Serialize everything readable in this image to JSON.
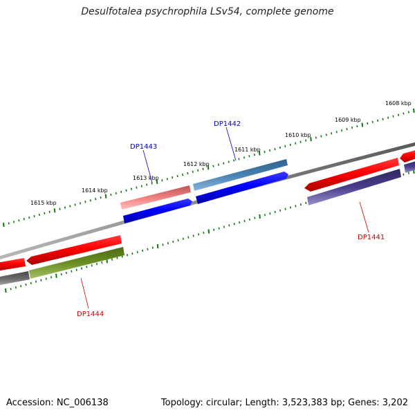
{
  "title": "Desulfotalea psychrophila LSv54, complete genome",
  "accession_text": "Accession: NC_006138",
  "stats_text": "Topology: circular; Length: 3,523,383 bp; Genes: 3,202",
  "scale_labels": [
    "1608 kbp",
    "1609 kbp",
    "1610 kbp",
    "1611 kbp",
    "1612 kbp",
    "1613 kbp",
    "1614 kbp",
    "1615 kbp"
  ],
  "genes": [
    {
      "name": "DP1441",
      "strand": "reverse",
      "color": "#cc0000"
    },
    {
      "name": "DP1442",
      "strand": "forward",
      "color": "#0000cc"
    },
    {
      "name": "DP1443",
      "strand": "forward",
      "color": "#0000cc"
    },
    {
      "name": "DP1444",
      "strand": "reverse",
      "color": "#cc0000"
    }
  ],
  "colors": {
    "backbone": "#808080",
    "tick": "#127a12",
    "forward_cds": "#0000ff",
    "reverse_cds": "#ff0000",
    "forward_annotation": "#4682b4",
    "forward_annotation_2": "#f08080",
    "reverse_annotation": "#483d8b",
    "reverse_annotation_2": "#6b8e23",
    "reverse_annotation_3": "#696969"
  }
}
